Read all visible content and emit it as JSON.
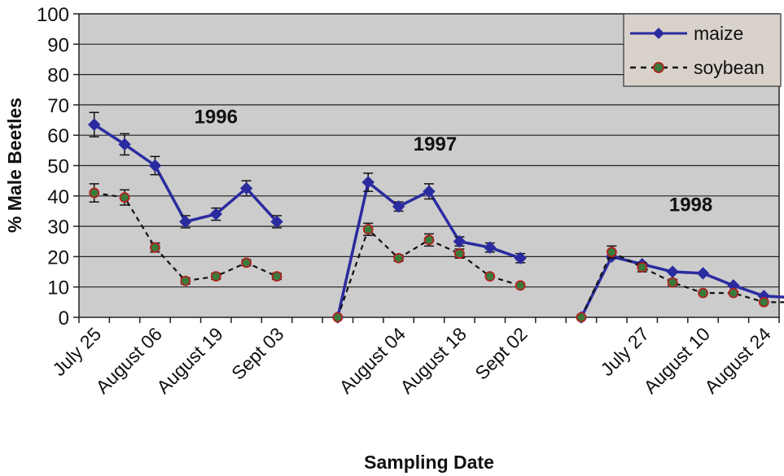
{
  "chart_data": {
    "type": "line",
    "title": "",
    "xlabel": "Sampling Date",
    "ylabel": "% Male Beetles",
    "ylim": [
      0,
      100
    ],
    "yticks": [
      0,
      10,
      20,
      30,
      40,
      50,
      60,
      70,
      80,
      90,
      100
    ],
    "grid": true,
    "legend_position": "top-right",
    "plot_background": "#cccccc",
    "slots": 23,
    "tick_labels": [
      {
        "slot": 0,
        "label": "July 25"
      },
      {
        "slot": 2,
        "label": "August 06"
      },
      {
        "slot": 4,
        "label": "August 19"
      },
      {
        "slot": 6,
        "label": "Sept 03"
      },
      {
        "slot": 10,
        "label": "August 04"
      },
      {
        "slot": 12,
        "label": "August 18"
      },
      {
        "slot": 14,
        "label": "Sept 02"
      },
      {
        "slot": 18,
        "label": "July 27"
      },
      {
        "slot": 20,
        "label": "August 10"
      },
      {
        "slot": 22,
        "label": "August 24"
      }
    ],
    "annotations": [
      {
        "text": "1996",
        "slot": 4,
        "y": 64
      },
      {
        "text": "1997",
        "slot": 11.2,
        "y": 55
      },
      {
        "text": "1998",
        "slot": 19.6,
        "y": 35
      }
    ],
    "series": [
      {
        "name": "maize",
        "color": "#2b2ba0",
        "line": "solid",
        "marker": "diamond",
        "segments": [
          {
            "slots": [
              0,
              1,
              2,
              3,
              4,
              5,
              6
            ],
            "values": [
              63.5,
              57,
              50,
              31.5,
              34,
              42.5,
              31.5
            ],
            "errors": [
              4,
              3.5,
              3,
              2,
              2,
              2.5,
              2
            ]
          },
          {
            "slots": [
              8,
              9,
              10,
              11,
              12,
              13,
              14
            ],
            "values": [
              0,
              44.5,
              36.5,
              41.5,
              25,
              23,
              19.5
            ],
            "errors": [
              0,
              3,
              1.5,
              2.5,
              1.5,
              1.5,
              1.5
            ]
          },
          {
            "slots": [
              16,
              17,
              18,
              19,
              20,
              21,
              22,
              23
            ],
            "values": [
              0,
              20,
              17.5,
              15,
              14.5,
              10.5,
              7,
              6.5
            ],
            "errors": [
              0,
              0,
              0,
              0,
              0,
              0,
              0,
              0
            ]
          }
        ]
      },
      {
        "name": "soybean",
        "color": "#111111",
        "marker_fill": "#3a7a3a",
        "marker_edge": "#b22222",
        "line": "dashed",
        "marker": "circle",
        "segments": [
          {
            "slots": [
              0,
              1,
              2,
              3,
              4,
              5,
              6
            ],
            "values": [
              41,
              39.5,
              23,
              12,
              13.5,
              18,
              13.5
            ],
            "errors": [
              3,
              2.5,
              1.5,
              1,
              1,
              1,
              1
            ]
          },
          {
            "slots": [
              8,
              9,
              10,
              11,
              12,
              13,
              14
            ],
            "values": [
              0,
              29,
              19.5,
              25.5,
              21,
              13.5,
              10.5
            ],
            "errors": [
              0,
              2,
              1,
              2,
              1.5,
              0,
              0
            ]
          },
          {
            "slots": [
              16,
              17,
              18,
              19,
              20,
              21,
              22,
              23
            ],
            "values": [
              0,
              21.5,
              16.5,
              11.5,
              8,
              8,
              5,
              5
            ],
            "errors": [
              0,
              2,
              1.5,
              1,
              0,
              0,
              0,
              0
            ]
          }
        ]
      }
    ]
  }
}
